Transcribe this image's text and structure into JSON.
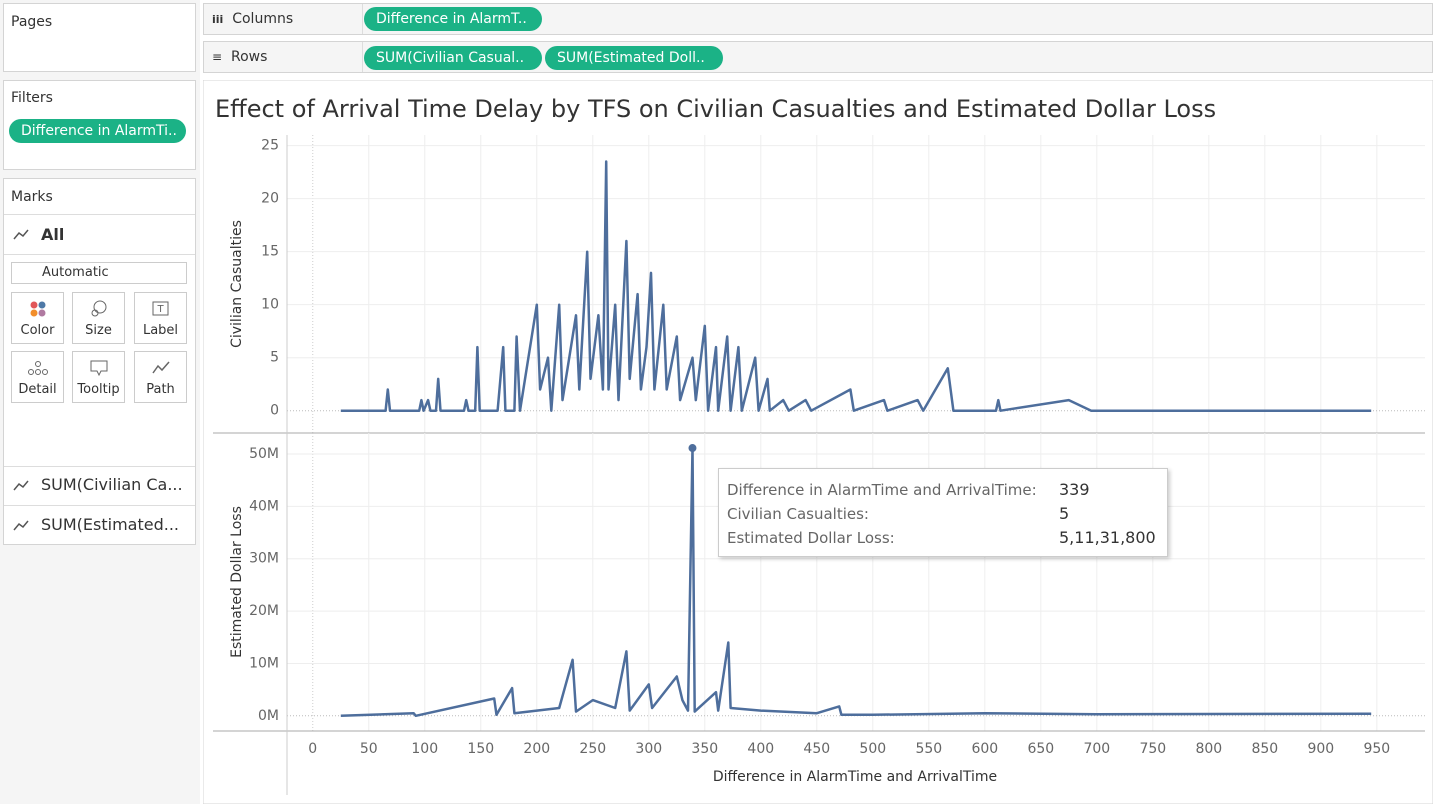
{
  "pages": {
    "title": "Pages"
  },
  "columns_shelf": {
    "label": "Columns",
    "pills": [
      "Difference in AlarmT.."
    ]
  },
  "rows_shelf": {
    "label": "Rows",
    "pills": [
      "SUM(Civilian Casual..",
      "SUM(Estimated Doll.."
    ]
  },
  "filters": {
    "title": "Filters",
    "pills": [
      "Difference in AlarmTi.."
    ]
  },
  "marks": {
    "title": "Marks",
    "all": "All",
    "mark_type": "Automatic",
    "buttons": [
      "Color",
      "Size",
      "Label",
      "Detail",
      "Tooltip",
      "Path"
    ],
    "cards": [
      "SUM(Civilian Ca...",
      "SUM(Estimated..."
    ]
  },
  "view_title": "Effect of Arrival Time Delay by TFS on Civilian Casualties and Estimated Dollar Loss",
  "tooltip": {
    "rows": [
      {
        "label": "Difference in AlarmTime and ArrivalTime:",
        "value": "339"
      },
      {
        "label": "Civilian Casualties:",
        "value": "5"
      },
      {
        "label": "Estimated Dollar Loss:",
        "value": "5,11,31,800"
      }
    ]
  },
  "chart_data": [
    {
      "type": "line",
      "y_label": "Civilian Casualties",
      "color": "#4e6e9c",
      "grid": true,
      "xlim": [
        -23,
        993
      ],
      "ylim": [
        -2.1,
        26
      ],
      "yticks": [
        0,
        5,
        10,
        15,
        20,
        25
      ],
      "x": [
        25,
        65,
        67,
        69,
        95,
        97,
        99,
        103,
        105,
        110,
        112,
        114,
        135,
        137,
        139,
        145,
        147,
        149,
        165,
        170,
        172,
        180,
        182,
        185,
        200,
        203,
        210,
        213,
        220,
        223,
        235,
        238,
        245,
        248,
        255,
        259,
        262,
        264,
        270,
        273,
        280,
        283,
        290,
        293,
        298,
        302,
        305,
        313,
        316,
        325,
        328,
        339,
        342,
        350,
        353,
        360,
        362,
        370,
        373,
        380,
        383,
        395,
        398,
        406,
        408,
        420,
        425,
        440,
        445,
        480,
        483,
        510,
        513,
        540,
        545,
        567,
        572,
        610,
        612,
        614,
        675,
        695,
        945
      ],
      "values": [
        0,
        0,
        2,
        0,
        0,
        1,
        0,
        1,
        0,
        0,
        3,
        0,
        0,
        1,
        0,
        0,
        6,
        0,
        0,
        6,
        0,
        0,
        7,
        0,
        10,
        2,
        5,
        0,
        10,
        1,
        9,
        2,
        15,
        3,
        9,
        2,
        23.5,
        2,
        10,
        1,
        16,
        3,
        11,
        2,
        6,
        13,
        2,
        10,
        2,
        7,
        1,
        5,
        1,
        8,
        0,
        6,
        0,
        7,
        0,
        6,
        0,
        5,
        0,
        3,
        0,
        1,
        0,
        1,
        0,
        2,
        0,
        1,
        0,
        1,
        0,
        4,
        0,
        0,
        1,
        0,
        1,
        0,
        0
      ]
    },
    {
      "type": "line",
      "y_label": "Estimated Dollar Loss",
      "x_label": "Difference in AlarmTime and ArrivalTime",
      "color": "#4e6e9c",
      "grid": true,
      "xlim": [
        -23,
        993
      ],
      "ylim": [
        -2900000,
        54000000
      ],
      "yticks": [
        {
          "value": 0,
          "label": "0M"
        },
        {
          "value": 10000000,
          "label": "10M"
        },
        {
          "value": 20000000,
          "label": "20M"
        },
        {
          "value": 30000000,
          "label": "30M"
        },
        {
          "value": 40000000,
          "label": "40M"
        },
        {
          "value": 50000000,
          "label": "50M"
        }
      ],
      "xticks": [
        0,
        50,
        100,
        150,
        200,
        250,
        300,
        350,
        400,
        450,
        500,
        550,
        600,
        650,
        700,
        750,
        800,
        850,
        900,
        950
      ],
      "x": [
        25,
        90,
        92,
        162,
        164,
        178,
        180,
        200,
        220,
        232,
        235,
        250,
        270,
        280,
        283,
        300,
        303,
        325,
        330,
        335,
        339,
        341,
        360,
        362,
        371,
        373,
        400,
        450,
        470,
        472,
        500,
        600,
        700,
        945
      ],
      "values": [
        0,
        500000,
        0,
        3300000,
        200000,
        5300000,
        500000,
        1000000,
        1500000,
        10700000,
        800000,
        3000000,
        1500000,
        12300000,
        1000000,
        6000000,
        1500000,
        7500000,
        3000000,
        1000000,
        51131800,
        800000,
        4500000,
        1000000,
        14000000,
        1500000,
        1000000,
        500000,
        1800000,
        200000,
        200000,
        500000,
        300000,
        400000
      ]
    }
  ]
}
